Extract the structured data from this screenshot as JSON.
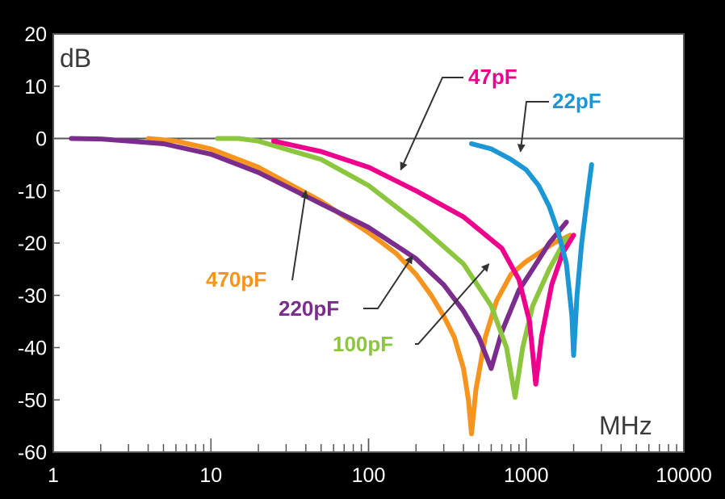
{
  "chart_data": {
    "type": "line",
    "title": "",
    "xlabel": "MHz",
    "ylabel": "dB",
    "x_scale": "log",
    "xlim": [
      1,
      10000
    ],
    "ylim": [
      -60,
      20
    ],
    "x_ticks": [
      "1",
      "10",
      "100",
      "1000",
      "10000"
    ],
    "y_ticks": [
      "20",
      "10",
      "0",
      "-10",
      "-20",
      "-30",
      "-40",
      "-50",
      "-60"
    ],
    "grid": false,
    "background": "#ffffff",
    "series": [
      {
        "name": "470pF",
        "color": "#f7941d",
        "points": [
          [
            4,
            0
          ],
          [
            6,
            -0.5
          ],
          [
            10,
            -2
          ],
          [
            20,
            -5.5
          ],
          [
            50,
            -12
          ],
          [
            100,
            -18
          ],
          [
            150,
            -22
          ],
          [
            200,
            -26
          ],
          [
            250,
            -30
          ],
          [
            300,
            -34
          ],
          [
            350,
            -38
          ],
          [
            400,
            -44
          ],
          [
            430,
            -50
          ],
          [
            450,
            -56.5
          ],
          [
            480,
            -48
          ],
          [
            550,
            -38
          ],
          [
            650,
            -31
          ],
          [
            800,
            -26
          ],
          [
            1000,
            -23.5
          ],
          [
            1500,
            -20
          ],
          [
            1900,
            -18.5
          ]
        ]
      },
      {
        "name": "220pF",
        "color": "#7b2d8e",
        "points": [
          [
            1.3,
            0
          ],
          [
            2,
            -0.1
          ],
          [
            5,
            -1
          ],
          [
            10,
            -3
          ],
          [
            20,
            -6.5
          ],
          [
            50,
            -12.5
          ],
          [
            100,
            -17
          ],
          [
            200,
            -23
          ],
          [
            300,
            -28
          ],
          [
            400,
            -33
          ],
          [
            500,
            -38
          ],
          [
            600,
            -44
          ],
          [
            700,
            -37
          ],
          [
            900,
            -29
          ],
          [
            1100,
            -25
          ],
          [
            1400,
            -20
          ],
          [
            1800,
            -16
          ]
        ]
      },
      {
        "name": "100pF",
        "color": "#8cc63f",
        "points": [
          [
            11,
            0
          ],
          [
            15,
            0
          ],
          [
            20,
            -0.5
          ],
          [
            50,
            -4
          ],
          [
            100,
            -9
          ],
          [
            200,
            -16
          ],
          [
            400,
            -24
          ],
          [
            600,
            -32
          ],
          [
            750,
            -40
          ],
          [
            850,
            -49.5
          ],
          [
            950,
            -40
          ],
          [
            1100,
            -32
          ],
          [
            1400,
            -25
          ],
          [
            1800,
            -19
          ]
        ]
      },
      {
        "name": "47pF",
        "color": "#ec008c",
        "points": [
          [
            25,
            -0.5
          ],
          [
            50,
            -2.5
          ],
          [
            100,
            -5.5
          ],
          [
            200,
            -10
          ],
          [
            400,
            -15
          ],
          [
            700,
            -21
          ],
          [
            900,
            -27
          ],
          [
            1050,
            -35
          ],
          [
            1150,
            -47
          ],
          [
            1250,
            -38
          ],
          [
            1450,
            -28
          ],
          [
            1700,
            -22
          ],
          [
            2000,
            -18.5
          ]
        ]
      },
      {
        "name": "22pF",
        "color": "#1c97d6",
        "points": [
          [
            450,
            -1
          ],
          [
            600,
            -2
          ],
          [
            800,
            -4
          ],
          [
            1000,
            -6
          ],
          [
            1200,
            -9
          ],
          [
            1400,
            -13
          ],
          [
            1600,
            -18
          ],
          [
            1800,
            -24
          ],
          [
            1950,
            -34
          ],
          [
            2000,
            -41.5
          ],
          [
            2100,
            -30
          ],
          [
            2250,
            -20
          ],
          [
            2450,
            -11
          ],
          [
            2600,
            -5
          ]
        ]
      }
    ],
    "annotations": [
      {
        "text": "470pF",
        "color": "#f7941d",
        "points_to": [
          40,
          -10
        ]
      },
      {
        "text": "220pF",
        "color": "#7b2d8e",
        "points_to": [
          190,
          -22.5
        ]
      },
      {
        "text": "100pF",
        "color": "#8cc63f",
        "points_to": [
          580,
          -24
        ]
      },
      {
        "text": "47pF",
        "color": "#ec008c",
        "points_to": [
          160,
          -6
        ]
      },
      {
        "text": "22pF",
        "color": "#1c97d6",
        "points_to": [
          920,
          -2.5
        ]
      }
    ]
  }
}
